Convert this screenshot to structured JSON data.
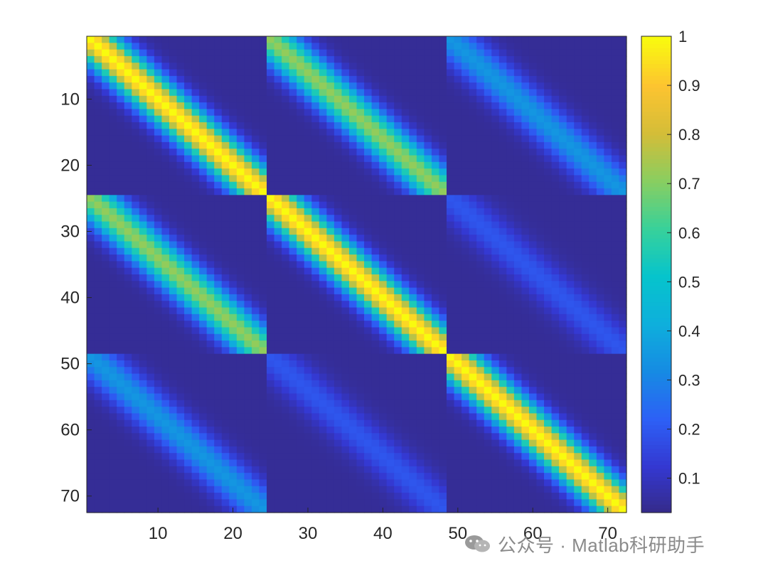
{
  "chart_data": {
    "type": "heatmap",
    "title": "",
    "xlabel": "",
    "ylabel": "",
    "n": 72,
    "block_size": 24,
    "xlim": [
      0.5,
      72.5
    ],
    "ylim": [
      72.5,
      0.5
    ],
    "x_ticks": [
      10,
      20,
      30,
      40,
      50,
      60,
      70
    ],
    "y_ticks": [
      10,
      20,
      30,
      40,
      50,
      60,
      70
    ],
    "colormap": "parula",
    "clim": [
      0.03,
      1
    ],
    "colorbar_ticks": [
      1,
      0.9,
      0.8,
      0.7,
      0.6,
      0.5,
      0.4,
      0.3,
      0.2,
      0.1
    ],
    "block_peak_values": [
      [
        1.0,
        0.72,
        0.35
      ],
      [
        0.72,
        1.0,
        0.2
      ],
      [
        0.35,
        0.2,
        1.0
      ]
    ],
    "band_decay_per_cell": 0.82,
    "background_value": 0.05
  },
  "watermark": {
    "text": "公众号 · Matlab科研助手",
    "icon": "wechat-icon"
  }
}
